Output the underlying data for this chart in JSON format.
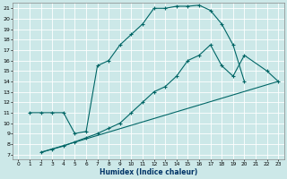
{
  "xlabel": "Humidex (Indice chaleur)",
  "bg_color": "#cce8e8",
  "grid_color": "#ffffff",
  "line_color": "#006666",
  "xlim": [
    -0.5,
    23.5
  ],
  "ylim": [
    6.5,
    21.5
  ],
  "xticks": [
    0,
    1,
    2,
    3,
    4,
    5,
    6,
    7,
    8,
    9,
    10,
    11,
    12,
    13,
    14,
    15,
    16,
    17,
    18,
    19,
    20,
    21,
    22,
    23
  ],
  "yticks": [
    7,
    8,
    9,
    10,
    11,
    12,
    13,
    14,
    15,
    16,
    17,
    18,
    19,
    20,
    21
  ],
  "line1_x": [
    1,
    2,
    3,
    4,
    5,
    6,
    7,
    8,
    9,
    10,
    11,
    12,
    13,
    14,
    15,
    16,
    17,
    18,
    19,
    20
  ],
  "line1_y": [
    11,
    11,
    11,
    11,
    9,
    9.2,
    15.5,
    16,
    17.5,
    18.5,
    19.5,
    21,
    21,
    21.2,
    21.2,
    21.3,
    20.8,
    19.5,
    17.5,
    14
  ],
  "line2_x": [
    2,
    3,
    4,
    5,
    6,
    7,
    8,
    9,
    10,
    11,
    12,
    13,
    14,
    15,
    16,
    17,
    18,
    19,
    20,
    22,
    23
  ],
  "line2_y": [
    7.2,
    7.5,
    7.8,
    8.2,
    8.6,
    9.0,
    9.5,
    10,
    11,
    12,
    13,
    13.5,
    14.5,
    16,
    16.5,
    17.5,
    15.5,
    14.5,
    16.5,
    15,
    14
  ],
  "line3_x": [
    2,
    23
  ],
  "line3_y": [
    7.2,
    14
  ]
}
